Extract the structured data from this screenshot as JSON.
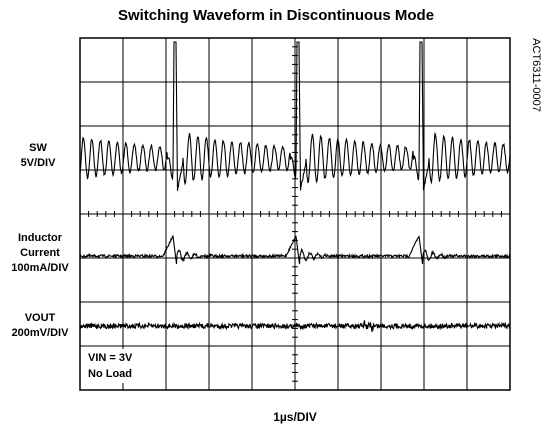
{
  "title": "Switching Waveform in Discontinuous Mode",
  "figure_id": "ACT6311-0007",
  "channels": [
    {
      "name": "SW",
      "scale": "5V/DIV"
    },
    {
      "name": "Inductor Current",
      "name_lines": [
        "Inductor",
        "Current"
      ],
      "scale": "100mA/DIV"
    },
    {
      "name": "VOUT",
      "scale": "200mV/DIV"
    }
  ],
  "conditions": [
    "VIN = 3V",
    "No Load"
  ],
  "time_scale": "1µs/DIV"
}
